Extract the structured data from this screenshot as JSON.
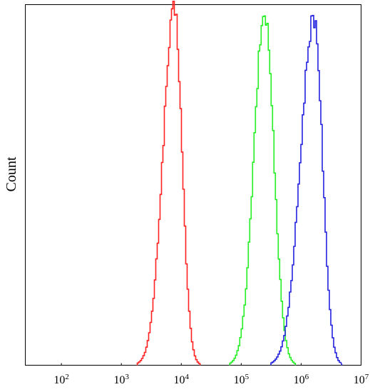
{
  "chart_data": {
    "type": "line",
    "title": "",
    "xlabel": "",
    "ylabel": "Count",
    "x_scale": "log",
    "xlim": [
      25,
      10000000
    ],
    "ylim": [
      0,
      1
    ],
    "grid": false,
    "x_ticks": [
      {
        "value": 100,
        "base": "10",
        "exp": "2"
      },
      {
        "value": 1000,
        "base": "10",
        "exp": "3"
      },
      {
        "value": 10000,
        "base": "10",
        "exp": "4"
      },
      {
        "value": 100000,
        "base": "10",
        "exp": "5"
      },
      {
        "value": 1000000,
        "base": "10",
        "exp": "6"
      },
      {
        "value": 10000000,
        "base": "10",
        "exp": "7"
      }
    ],
    "series": [
      {
        "color": "#ff2020",
        "peak_x": 7500,
        "peak_y": 1.0,
        "x_range": [
          2000,
          18000
        ]
      },
      {
        "color": "#22ee22",
        "peak_x": 240000,
        "peak_y": 0.99,
        "x_range": [
          70000,
          700000
        ]
      },
      {
        "color": "#2222dd",
        "peak_x": 1600000,
        "peak_y": 0.98,
        "x_range": [
          340000,
          4200000
        ]
      }
    ]
  }
}
